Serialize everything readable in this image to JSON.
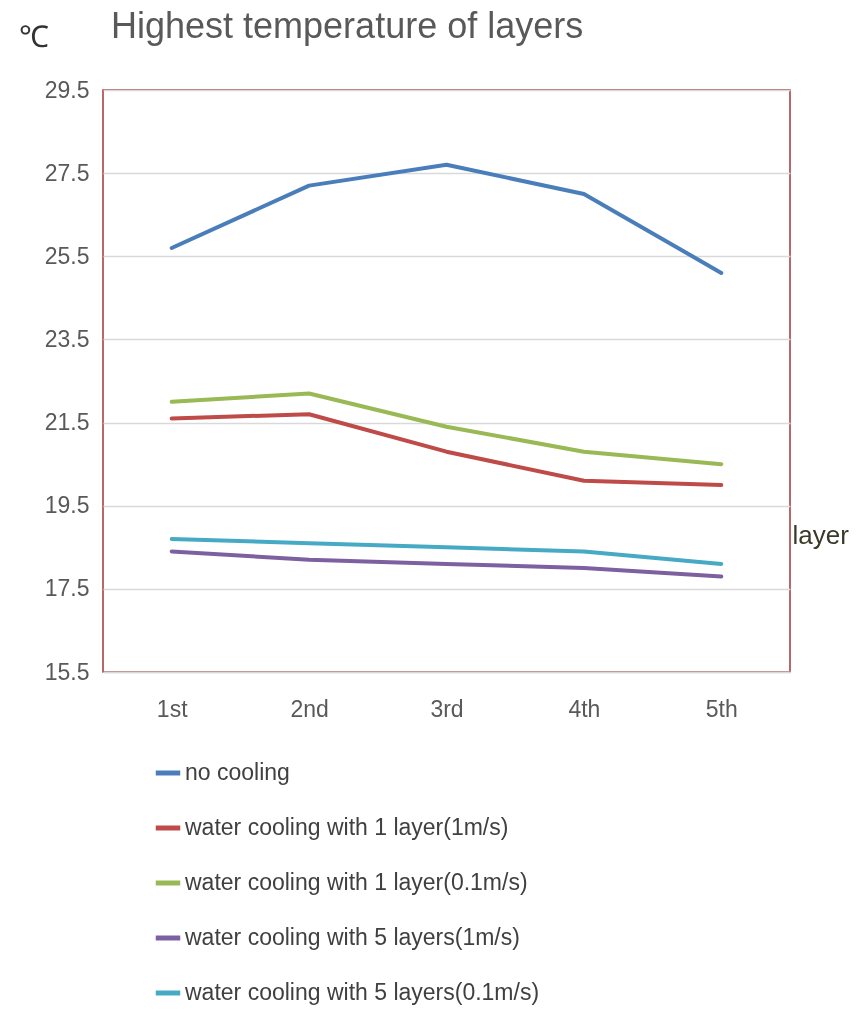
{
  "chart_data": {
    "type": "line",
    "title": "Highest temperature of layers",
    "ylabel": "℃",
    "xlabel": "layer",
    "categories": [
      "1st",
      "2nd",
      "3rd",
      "4th",
      "5th"
    ],
    "series": [
      {
        "name": "no cooling",
        "color": "#4a7ebb",
        "values": [
          25.7,
          27.2,
          27.7,
          27.0,
          25.1
        ]
      },
      {
        "name": "water cooling with 1 layer(1m/s)",
        "color": "#be4b48",
        "values": [
          21.6,
          21.7,
          20.8,
          20.1,
          20.0
        ]
      },
      {
        "name": "water cooling with 1 layer(0.1m/s)",
        "color": "#98b954",
        "values": [
          22.0,
          22.2,
          21.4,
          20.8,
          20.5
        ]
      },
      {
        "name": "water cooling with 5 layers(1m/s)",
        "color": "#7d60a0",
        "values": [
          18.4,
          18.2,
          18.1,
          18.0,
          17.8
        ]
      },
      {
        "name": "water cooling with 5 layers(0.1m/s)",
        "color": "#46aac5",
        "values": [
          18.7,
          18.6,
          18.5,
          18.4,
          18.1
        ]
      }
    ],
    "ylim": [
      15.5,
      29.5
    ],
    "yticks": [
      15.5,
      17.5,
      19.5,
      21.5,
      23.5,
      25.5,
      27.5,
      29.5
    ],
    "grid": "y",
    "legend": "bottom"
  }
}
